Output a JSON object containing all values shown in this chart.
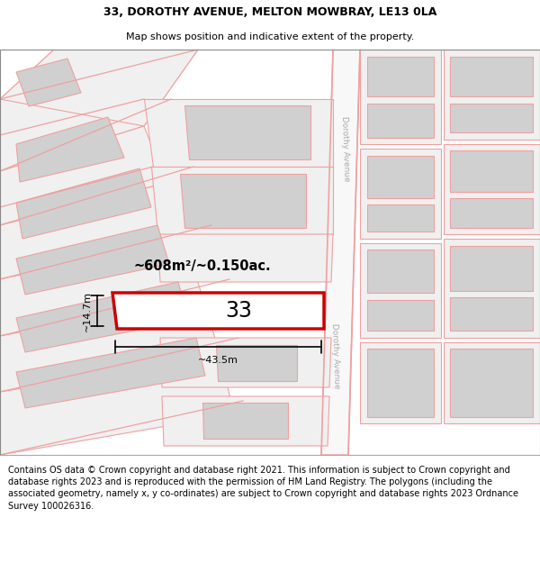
{
  "title_line1": "33, DOROTHY AVENUE, MELTON MOWBRAY, LE13 0LA",
  "title_line2": "Map shows position and indicative extent of the property.",
  "footer_text": "Contains OS data © Crown copyright and database right 2021. This information is subject to Crown copyright and database rights 2023 and is reproduced with the permission of HM Land Registry. The polygons (including the associated geometry, namely x, y co-ordinates) are subject to Crown copyright and database rights 2023 Ordnance Survey 100026316.",
  "area_label": "~608m²/~0.150ac.",
  "width_label": "~43.5m",
  "height_label": "~14.7m",
  "number_label": "33",
  "bg_color": "#ffffff",
  "highlight_color": "#cc0000",
  "road_color": "#f0a0a0",
  "building_fill": "#d0d0d0",
  "parcel_fill": "#f0f0f0",
  "title_fontsize": 9,
  "footer_fontsize": 7
}
